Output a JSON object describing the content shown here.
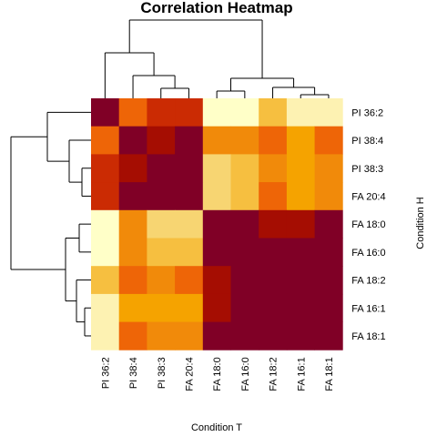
{
  "chart_data": {
    "type": "heatmap",
    "title": "Correlation Heatmap",
    "xlabel": "Condition T",
    "ylabel": "Condition H",
    "rows": [
      "PI 36:2",
      "PI 38:4",
      "PI 38:3",
      "FA 20:4",
      "FA 18:0",
      "FA 16:0",
      "FA 18:2",
      "FA 16:1",
      "FA 18:1"
    ],
    "columns": [
      "PI 36:2",
      "PI 38:4",
      "PI 38:3",
      "FA 20:4",
      "FA 18:0",
      "FA 16:0",
      "FA 18:2",
      "FA 16:1",
      "FA 18:1"
    ],
    "values": [
      [
        9,
        6,
        7,
        7,
        0,
        0,
        3,
        1,
        1
      ],
      [
        6,
        9,
        8,
        8.5,
        5,
        5,
        6,
        4,
        6
      ],
      [
        7,
        8,
        9,
        8.5,
        2,
        3,
        5,
        4,
        5
      ],
      [
        7,
        8.5,
        8.5,
        9,
        2,
        3,
        6,
        4,
        5
      ],
      [
        0,
        5,
        2,
        2,
        9,
        9,
        8,
        8,
        8.5
      ],
      [
        0,
        5,
        3,
        3,
        9,
        9,
        8.5,
        8.5,
        8.5
      ],
      [
        3,
        6,
        5,
        6,
        8,
        8.5,
        9,
        8.5,
        8.5
      ],
      [
        1,
        4,
        4,
        4,
        8,
        8.5,
        8.5,
        9,
        9
      ],
      [
        1,
        6,
        5,
        5,
        8.5,
        8.5,
        8.5,
        9,
        9
      ]
    ],
    "color_scale": [
      "#ffffc8",
      "#fdf2b2",
      "#f7d572",
      "#f6bf40",
      "#f5a300",
      "#f18a0a",
      "#ee6507",
      "#cb2b03",
      "#a50d02",
      "#800026"
    ],
    "grid": false,
    "legend": "none"
  }
}
